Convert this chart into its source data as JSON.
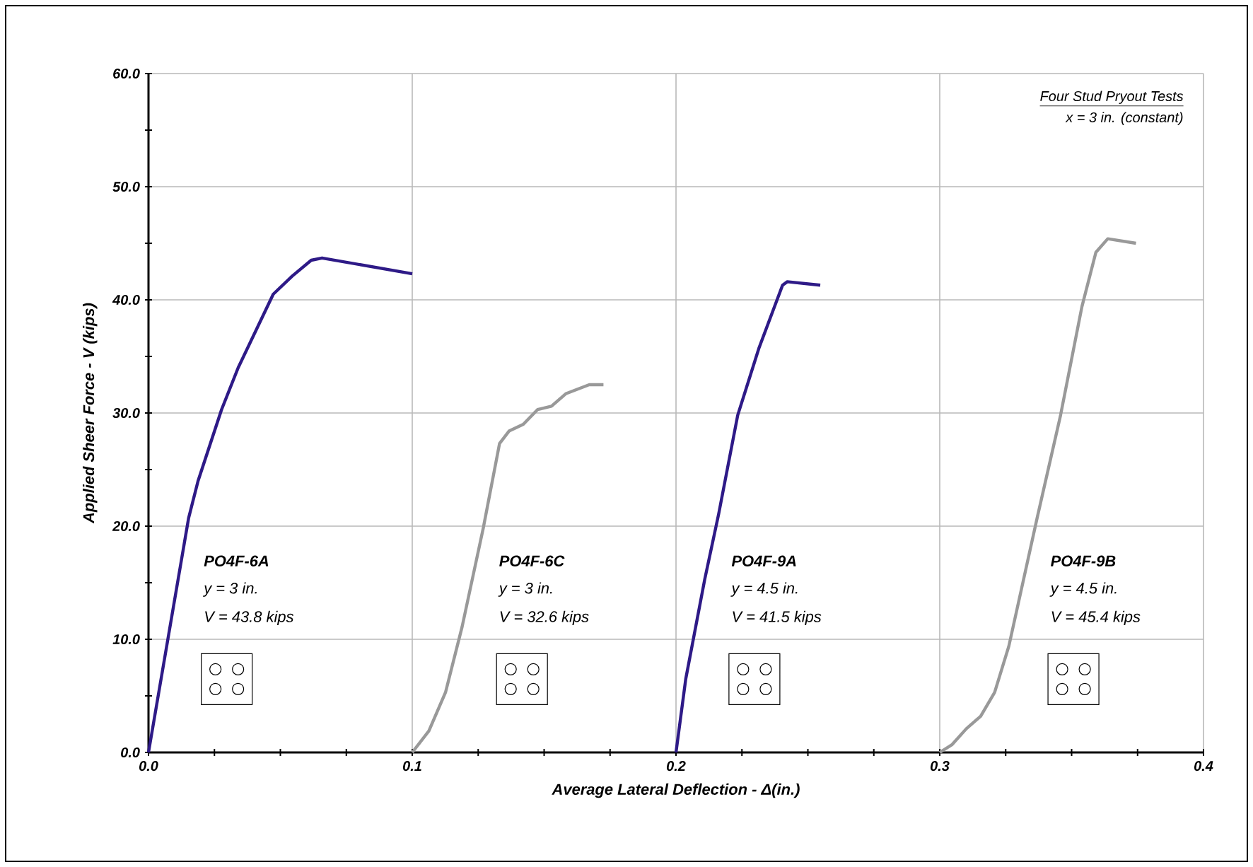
{
  "chart_data": {
    "type": "line",
    "xlabel": "Average Lateral Deflection - Δ(in.)",
    "ylabel": "Applied Sheer Force - V (kips)",
    "xlim": [
      0,
      0.4
    ],
    "ylim": [
      0,
      60
    ],
    "xticks": [
      {
        "value": 0,
        "label": "0.0"
      },
      {
        "value": 0.1,
        "label": "0.1"
      },
      {
        "value": 0.2,
        "label": "0.2"
      },
      {
        "value": 0.3,
        "label": "0.3"
      },
      {
        "value": 0.4,
        "label": "0.4"
      }
    ],
    "yticks": [
      {
        "value": 0,
        "label": "0.0"
      },
      {
        "value": 10,
        "label": "10.0"
      },
      {
        "value": 20,
        "label": "20.0"
      },
      {
        "value": 30,
        "label": "30.0"
      },
      {
        "value": 40,
        "label": "40.0"
      },
      {
        "value": 50,
        "label": "50.0"
      },
      {
        "value": 60,
        "label": "60.0"
      }
    ],
    "grid": true,
    "marker": "none",
    "line_style": "solid",
    "legend": false,
    "series": [
      {
        "name": "PO4F-6A",
        "color": "#2e1a87",
        "x": [
          0,
          0.0152,
          0.0188,
          0.0277,
          0.034,
          0.0473,
          0.0545,
          0.0617,
          0.0658,
          0.1
        ],
        "values": [
          0,
          20.7,
          24.0,
          30.3,
          34.0,
          40.5,
          42.1,
          43.5,
          43.7,
          42.3
        ]
      },
      {
        "name": "PO4F-6C",
        "color": "#999999",
        "x": [
          0.1,
          0.1063,
          0.1126,
          0.1189,
          0.1269,
          0.1331,
          0.1367,
          0.1421,
          0.1475,
          0.1528,
          0.1582,
          0.1671,
          0.1725
        ],
        "values": [
          0,
          1.9,
          5.3,
          11.1,
          19.8,
          27.3,
          28.4,
          29.0,
          30.3,
          30.6,
          31.7,
          32.5,
          32.5
        ]
      },
      {
        "name": "PO4F-9A",
        "color": "#2e1a87",
        "x": [
          0.2,
          0.2037,
          0.2109,
          0.2162,
          0.2234,
          0.2314,
          0.2404,
          0.2422,
          0.2547
        ],
        "values": [
          0,
          6.5,
          15.3,
          21.1,
          29.8,
          35.7,
          41.3,
          41.6,
          41.3
        ]
      },
      {
        "name": "PO4F-9B",
        "color": "#999999",
        "x": [
          0.3,
          0.3047,
          0.3101,
          0.3155,
          0.3208,
          0.3262,
          0.3369,
          0.3458,
          0.3539,
          0.3592,
          0.3637,
          0.3744
        ],
        "values": [
          0,
          0.7,
          2.1,
          3.2,
          5.3,
          9.4,
          20.7,
          29.8,
          39.4,
          44.2,
          45.4,
          45.0
        ]
      }
    ],
    "annotations": [
      "y = 3 in.",
      "V = 43.8 kips",
      "y = 3 in.",
      "V = 32.6 kips",
      "y = 4.5 in.",
      "V = 41.5 kips",
      "y = 4.5 in.",
      "V = 45.4 kips",
      "Four Stud Pryout Tests",
      "x = 3 in. (constant)"
    ]
  }
}
